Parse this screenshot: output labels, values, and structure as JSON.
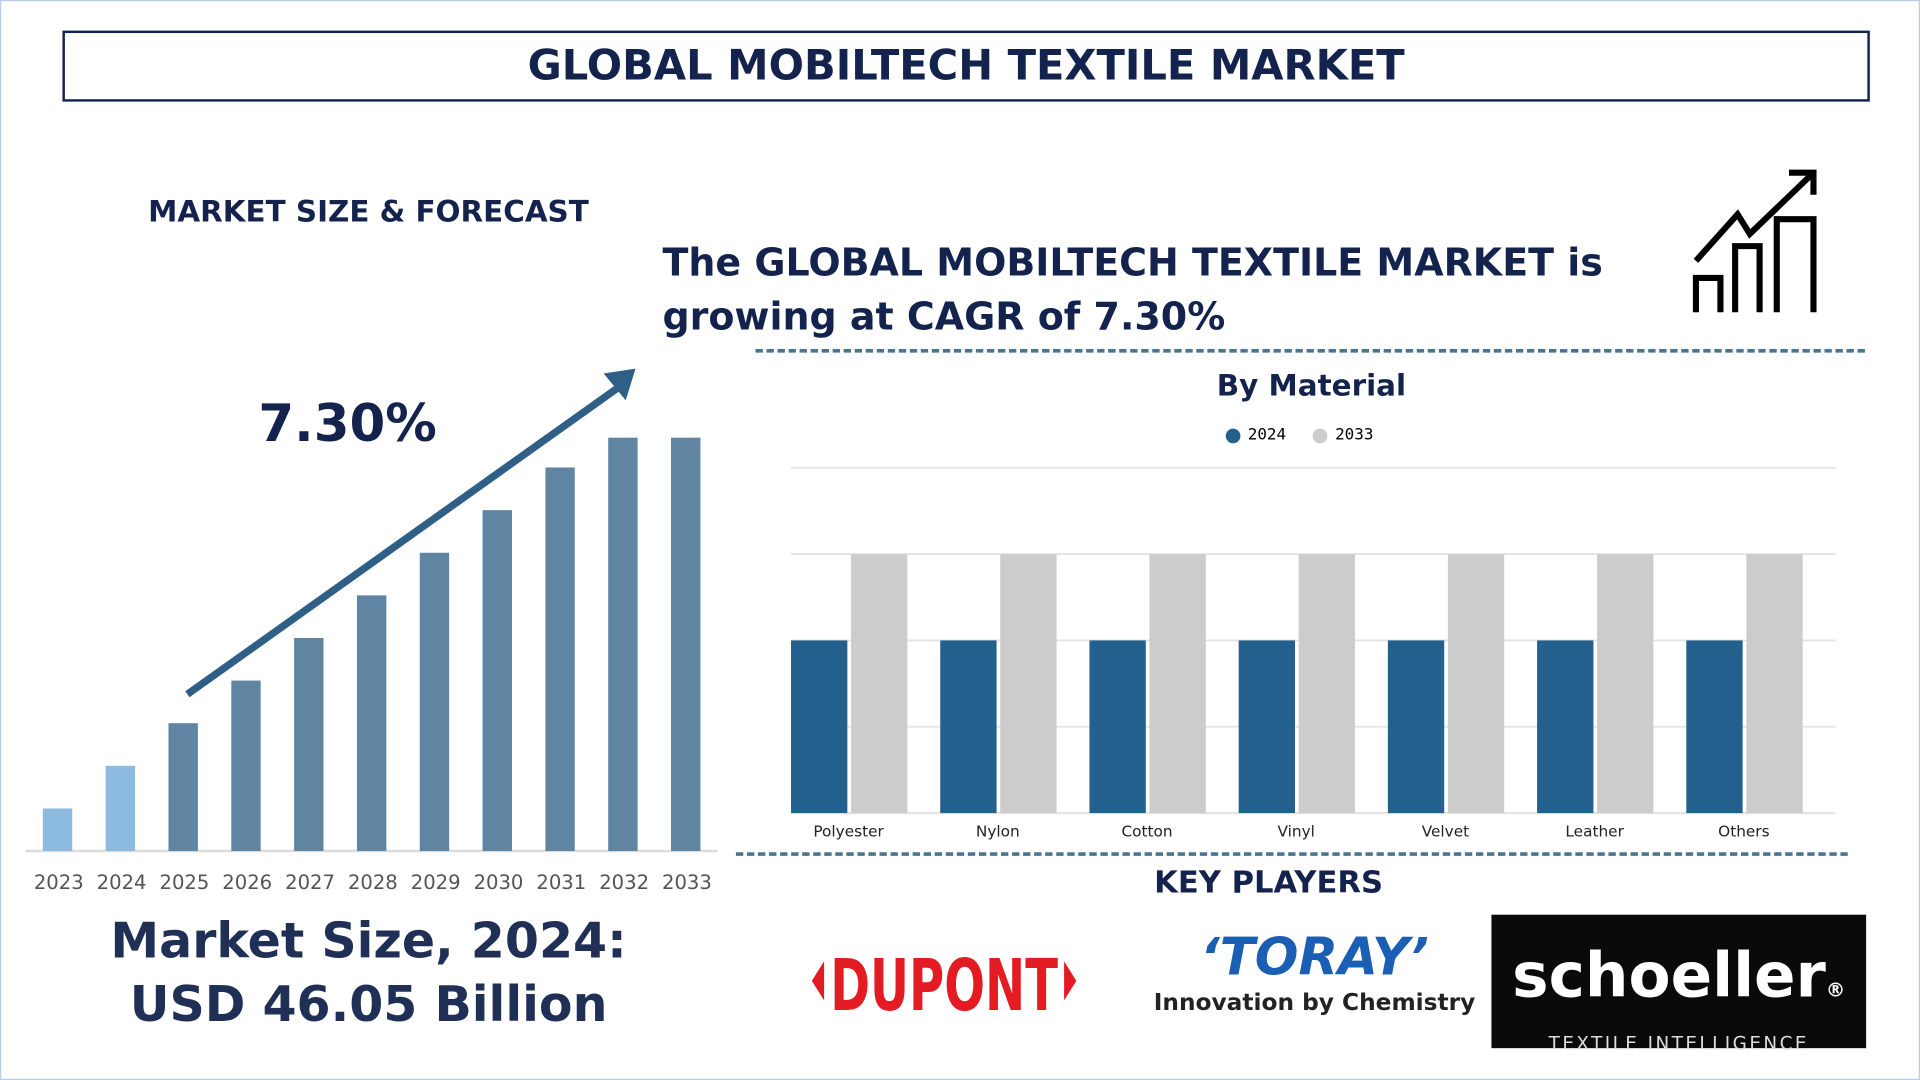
{
  "header": {
    "title": "GLOBAL MOBILTECH TEXTILE MARKET"
  },
  "left": {
    "section_label": "MARKET SIZE & FORECAST",
    "cagr_badge": "7.30%",
    "market_size_line1": "Market Size, 2024:",
    "market_size_line2": "USD 46.05 Billion"
  },
  "headline": "The GLOBAL MOBILTECH TEXTILE MARKET is growing at CAGR of 7.30%",
  "icons": {
    "growth": "growth-chart-arrow-icon"
  },
  "colors": {
    "navy": "#13234d",
    "bar_2024": "#23608e",
    "bar_2033": "#cccccc",
    "forecast_bar": "#5f85a3",
    "forecast_bar_light": "#8dbbe0",
    "arrow": "#2f5f86"
  },
  "key_players": {
    "title": "KEY PLAYERS",
    "logos": [
      "DUPONT",
      "TORAY",
      "Innovation by Chemistry",
      "schoeller",
      "TEXTILE INTELLIGENCE"
    ]
  },
  "chart_data": [
    {
      "type": "bar",
      "title": "",
      "categories": [
        "2023",
        "2024",
        "2025",
        "2026",
        "2027",
        "2028",
        "2029",
        "2030",
        "2031",
        "2032",
        "2033"
      ],
      "values": [
        1,
        2,
        3,
        4,
        5,
        6,
        7,
        8,
        9,
        9.7,
        9.7
      ],
      "highlight": [
        "2023",
        "2024"
      ],
      "annotation": "7.30%",
      "grid": false
    },
    {
      "type": "bar",
      "title": "By Material",
      "categories": [
        "Polyester",
        "Nylon",
        "Cotton",
        "Vinyl",
        "Velvet",
        "Leather",
        "Others"
      ],
      "series": [
        {
          "name": "2024",
          "values": [
            2,
            2,
            2,
            2,
            2,
            2,
            2
          ]
        },
        {
          "name": "2033",
          "values": [
            3,
            3,
            3,
            3,
            3,
            3,
            3
          ]
        }
      ],
      "ylim": [
        0,
        4
      ],
      "grid": true,
      "legend": "top"
    }
  ]
}
